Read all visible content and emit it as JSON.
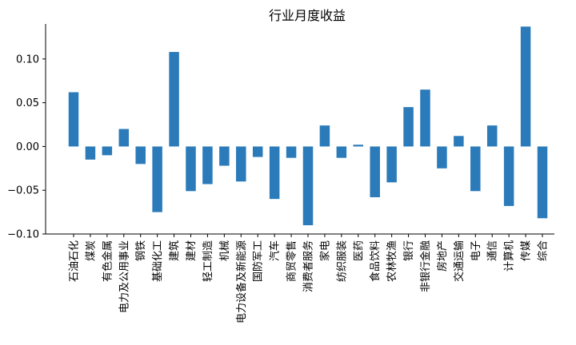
{
  "chart_data": {
    "type": "bar",
    "title": "行业月度收益",
    "xlabel": "",
    "ylabel": "",
    "ylim": [
      -0.1,
      0.14
    ],
    "yticks": [
      -0.1,
      -0.05,
      0.0,
      0.05,
      0.1
    ],
    "ytick_labels": [
      "−0.10",
      "−0.05",
      "0.00",
      "0.05",
      "0.10"
    ],
    "grid": false,
    "bar_color": "#2b7bba",
    "categories": [
      "石油石化",
      "煤炭",
      "有色金属",
      "电力及公用事业",
      "钢铁",
      "基础化工",
      "建筑",
      "建材",
      "轻工制造",
      "机械",
      "电力设备及新能源",
      "国防军工",
      "汽车",
      "商贸零售",
      "消费者服务",
      "家电",
      "纺织服装",
      "医药",
      "食品饮料",
      "农林牧渔",
      "银行",
      "非银行金融",
      "房地产",
      "交通运输",
      "电子",
      "通信",
      "计算机",
      "传媒",
      "综合"
    ],
    "values": [
      0.062,
      -0.015,
      -0.01,
      0.02,
      -0.02,
      -0.075,
      0.108,
      -0.051,
      -0.043,
      -0.022,
      -0.04,
      -0.012,
      -0.06,
      -0.013,
      -0.09,
      0.024,
      -0.013,
      0.002,
      -0.058,
      -0.041,
      0.045,
      0.065,
      -0.025,
      0.012,
      -0.051,
      0.024,
      -0.068,
      0.137,
      -0.082
    ]
  }
}
